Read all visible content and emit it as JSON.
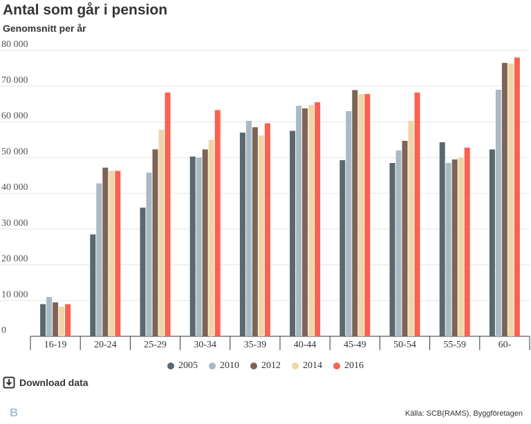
{
  "header": {
    "title": "Antal som går i pension",
    "subtitle": "Genomsnitt per år"
  },
  "chart_data": {
    "type": "bar",
    "categories": [
      "16-19",
      "20-24",
      "25-29",
      "30-34",
      "35-39",
      "40-44",
      "45-49",
      "50-54",
      "55-59",
      "60-"
    ],
    "series": [
      {
        "name": "2005",
        "color": "#5a6870",
        "values": [
          9000,
          28500,
          36000,
          50300,
          57000,
          57500,
          49300,
          48500,
          54300,
          52300
        ]
      },
      {
        "name": "2010",
        "color": "#a9bac4",
        "values": [
          11000,
          42800,
          45800,
          50000,
          60300,
          64500,
          63000,
          52000,
          48500,
          69000
        ]
      },
      {
        "name": "2012",
        "color": "#7d6456",
        "values": [
          9500,
          47200,
          52300,
          52300,
          58500,
          63800,
          68900,
          54700,
          49500,
          76500
        ]
      },
      {
        "name": "2014",
        "color": "#f0d5a8",
        "values": [
          8300,
          46300,
          57800,
          55000,
          56200,
          64700,
          67800,
          60300,
          50000,
          76300
        ]
      },
      {
        "name": "2016",
        "color": "#fa6150",
        "values": [
          9000,
          46300,
          68200,
          63300,
          59600,
          65500,
          67800,
          68200,
          52800,
          78000
        ]
      }
    ],
    "yticks": [
      "0",
      "10 000",
      "20 000",
      "30 000",
      "40 000",
      "50 000",
      "60 000",
      "70 000",
      "80 000"
    ],
    "ylim": [
      0,
      80000
    ],
    "grid": true,
    "legend_position": "bottom"
  },
  "actions": {
    "download_label": "Download data"
  },
  "footer": {
    "logo": "B",
    "source": "Källa: SCB(RAMS), Byggföretagen"
  }
}
